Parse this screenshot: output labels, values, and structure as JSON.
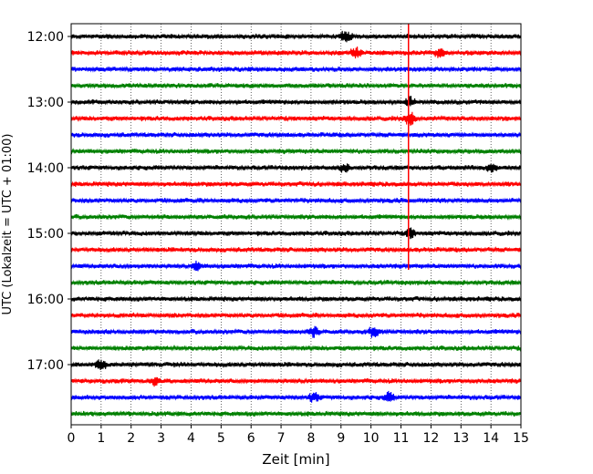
{
  "chart_data": {
    "type": "line",
    "title": "",
    "xlabel": "Zeit  [min]",
    "ylabel": "UTC (Lokalzeit = UTC + 01:00)",
    "xlim": [
      0,
      15
    ],
    "x_ticks": [
      "0",
      "1",
      "2",
      "3",
      "4",
      "5",
      "6",
      "7",
      "8",
      "9",
      "10",
      "11",
      "12",
      "13",
      "14",
      "15"
    ],
    "y_ticks": [
      "12:00",
      "13:00",
      "14:00",
      "15:00",
      "16:00",
      "17:00"
    ],
    "grid": "vertical dotted",
    "trace_start_times": [
      "12:00",
      "12:15",
      "12:30",
      "12:45",
      "13:00",
      "13:15",
      "13:30",
      "13:45",
      "14:00",
      "14:15",
      "14:30",
      "14:45",
      "15:00",
      "15:15",
      "15:30",
      "15:45",
      "16:00",
      "16:15",
      "16:30",
      "16:45",
      "17:00",
      "17:15",
      "17:30",
      "17:45"
    ],
    "trace_colors": [
      "#000000",
      "#ff0000",
      "#0000ff",
      "#008000"
    ],
    "marker": {
      "x": 11.25,
      "from": "12:00",
      "to": "15:30",
      "color": "#ff0000"
    },
    "events": [
      {
        "trace": 0,
        "x": 9.15,
        "amp": 1.0
      },
      {
        "trace": 1,
        "x": 9.5,
        "amp": 0.7
      },
      {
        "trace": 1,
        "x": 12.3,
        "amp": 0.6
      },
      {
        "trace": 4,
        "x": 11.3,
        "amp": 0.7
      },
      {
        "trace": 5,
        "x": 11.3,
        "amp": 1.2
      },
      {
        "trace": 8,
        "x": 9.1,
        "amp": 0.6
      },
      {
        "trace": 8,
        "x": 14.0,
        "amp": 0.6
      },
      {
        "trace": 12,
        "x": 11.3,
        "amp": 0.7
      },
      {
        "trace": 14,
        "x": 4.2,
        "amp": 0.6
      },
      {
        "trace": 18,
        "x": 8.1,
        "amp": 0.8
      },
      {
        "trace": 18,
        "x": 10.1,
        "amp": 0.9
      },
      {
        "trace": 20,
        "x": 1.0,
        "amp": 0.7
      },
      {
        "trace": 21,
        "x": 2.8,
        "amp": 0.6
      },
      {
        "trace": 22,
        "x": 8.1,
        "amp": 0.7
      },
      {
        "trace": 22,
        "x": 10.6,
        "amp": 0.7
      }
    ]
  }
}
